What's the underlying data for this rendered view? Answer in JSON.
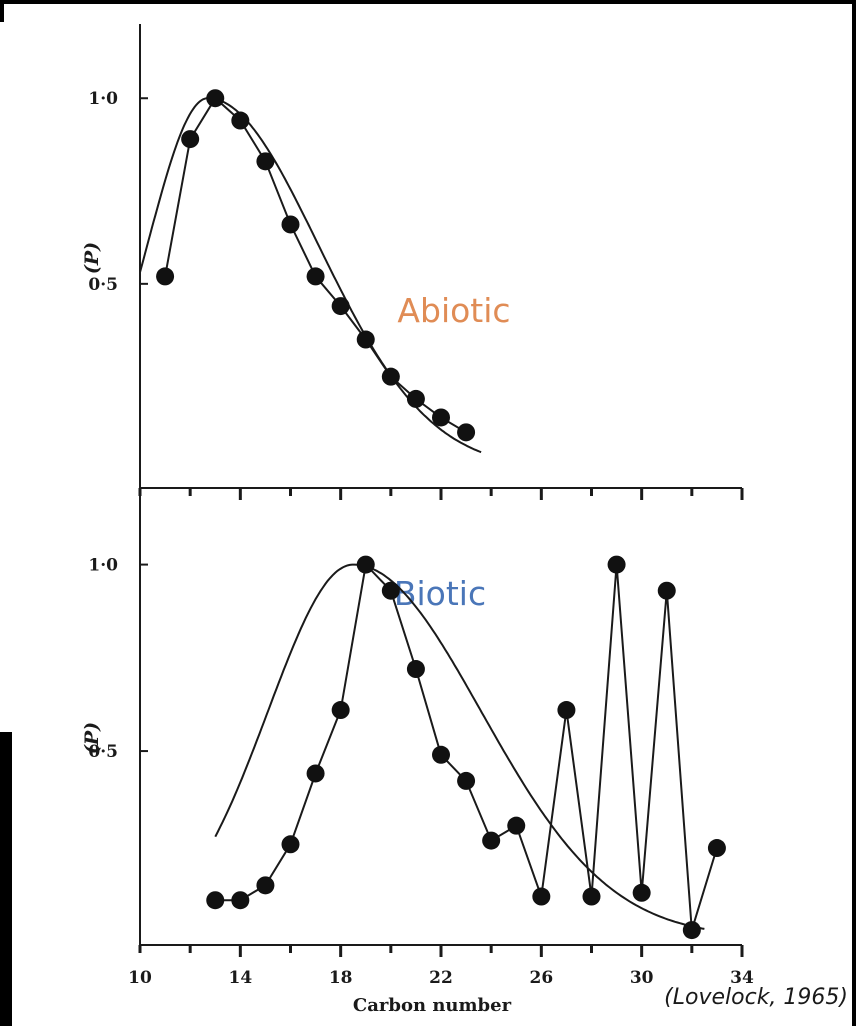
{
  "chart_data": [
    {
      "type": "line",
      "annotation": "Abiotic",
      "annotation_color": "#e08c55",
      "ylabel": "(P)",
      "y_tick_labels": [
        "1·0",
        "0·5"
      ],
      "y_ticks": [
        1.0,
        0.5
      ],
      "ylim": [
        -0.05,
        1.2
      ],
      "xlim": [
        10,
        34
      ],
      "points": [
        {
          "x": 11,
          "y": 0.52
        },
        {
          "x": 12,
          "y": 0.89
        },
        {
          "x": 13,
          "y": 1.0
        },
        {
          "x": 14,
          "y": 0.94
        },
        {
          "x": 15,
          "y": 0.83
        },
        {
          "x": 16,
          "y": 0.66
        },
        {
          "x": 17,
          "y": 0.52
        },
        {
          "x": 18,
          "y": 0.44
        },
        {
          "x": 19,
          "y": 0.35
        },
        {
          "x": 20,
          "y": 0.25
        },
        {
          "x": 21,
          "y": 0.19
        },
        {
          "x": 22,
          "y": 0.14
        },
        {
          "x": 23,
          "y": 0.1
        }
      ],
      "fitted_curve": {
        "mode": 12.7,
        "sd_left": 2.4,
        "sd_right": 4.4,
        "x_from": 10,
        "x_to": 23.6
      }
    },
    {
      "type": "line",
      "annotation": "Biotic",
      "annotation_color": "#4a76b8",
      "ylabel": "(P)",
      "y_tick_labels": [
        "1·0",
        "0·5"
      ],
      "y_ticks": [
        1.0,
        0.5
      ],
      "ylim": [
        -0.02,
        1.2
      ],
      "xlim": [
        10,
        34
      ],
      "xlabel": "Carbon number",
      "x_ticks": [
        10,
        14,
        18,
        22,
        26,
        30,
        34
      ],
      "points": [
        {
          "x": 13,
          "y": 0.1
        },
        {
          "x": 14,
          "y": 0.1
        },
        {
          "x": 15,
          "y": 0.14
        },
        {
          "x": 16,
          "y": 0.25
        },
        {
          "x": 17,
          "y": 0.44
        },
        {
          "x": 18,
          "y": 0.61
        },
        {
          "x": 19,
          "y": 1.0
        },
        {
          "x": 20,
          "y": 0.93
        },
        {
          "x": 21,
          "y": 0.72
        },
        {
          "x": 22,
          "y": 0.49
        },
        {
          "x": 23,
          "y": 0.42
        },
        {
          "x": 24,
          "y": 0.26
        },
        {
          "x": 25,
          "y": 0.3
        },
        {
          "x": 26,
          "y": 0.11
        },
        {
          "x": 27,
          "y": 0.61
        },
        {
          "x": 28,
          "y": 0.11
        },
        {
          "x": 29,
          "y": 1.0
        },
        {
          "x": 30,
          "y": 0.12
        },
        {
          "x": 31,
          "y": 0.93
        },
        {
          "x": 32,
          "y": 0.02
        },
        {
          "x": 33,
          "y": 0.24
        }
      ],
      "fitted_curve": {
        "mode": 18.5,
        "sd_left": 3.4,
        "sd_right": 5.1,
        "x_from": 13,
        "x_to": 32.5
      }
    }
  ],
  "credit": "(Lovelock, 1965)"
}
